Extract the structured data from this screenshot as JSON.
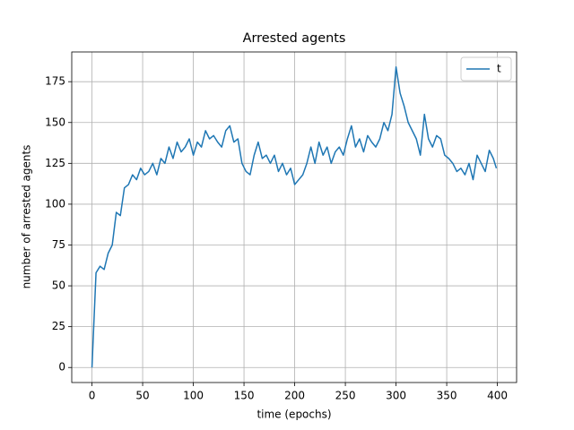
{
  "chart_data": {
    "type": "line",
    "title": "Arrested agents",
    "x_label": "time (epochs)",
    "y_label": "number of arrested agents",
    "x": [
      0,
      4,
      8,
      12,
      16,
      20,
      24,
      28,
      32,
      36,
      40,
      44,
      48,
      52,
      56,
      60,
      64,
      68,
      72,
      76,
      80,
      84,
      88,
      92,
      96,
      100,
      104,
      108,
      112,
      116,
      120,
      124,
      128,
      132,
      136,
      140,
      144,
      148,
      152,
      156,
      160,
      164,
      168,
      172,
      176,
      180,
      184,
      188,
      192,
      196,
      200,
      204,
      208,
      212,
      216,
      220,
      224,
      228,
      232,
      236,
      240,
      244,
      248,
      252,
      256,
      260,
      264,
      268,
      272,
      276,
      280,
      284,
      288,
      292,
      296,
      300,
      304,
      308,
      312,
      316,
      320,
      324,
      328,
      332,
      336,
      340,
      344,
      348,
      352,
      356,
      360,
      364,
      368,
      372,
      376,
      380,
      384,
      388,
      392,
      396,
      399
    ],
    "series": [
      {
        "name": "t",
        "color": "#1f77b4",
        "values": [
          0,
          58,
          62,
          60,
          70,
          75,
          95,
          93,
          110,
          112,
          118,
          115,
          122,
          118,
          120,
          125,
          118,
          128,
          125,
          135,
          128,
          138,
          132,
          135,
          140,
          130,
          138,
          135,
          145,
          140,
          142,
          138,
          135,
          145,
          148,
          138,
          140,
          125,
          120,
          118,
          130,
          138,
          128,
          130,
          125,
          130,
          120,
          125,
          118,
          122,
          112,
          115,
          118,
          125,
          135,
          125,
          138,
          130,
          135,
          125,
          132,
          135,
          130,
          140,
          148,
          135,
          140,
          132,
          142,
          138,
          135,
          140,
          150,
          145,
          155,
          184,
          168,
          160,
          150,
          145,
          140,
          130,
          155,
          140,
          135,
          142,
          140,
          130,
          128,
          125,
          120,
          122,
          118,
          125,
          115,
          130,
          125,
          120,
          133,
          128,
          122
        ]
      }
    ],
    "xlim": [
      -19.95,
      418.95
    ],
    "ylim": [
      -9.2,
      193.2
    ],
    "xticks": [
      0,
      50,
      100,
      150,
      200,
      250,
      300,
      350,
      400
    ],
    "yticks": [
      0,
      25,
      50,
      75,
      100,
      125,
      150,
      175
    ],
    "grid": true,
    "legend": "upper right"
  }
}
